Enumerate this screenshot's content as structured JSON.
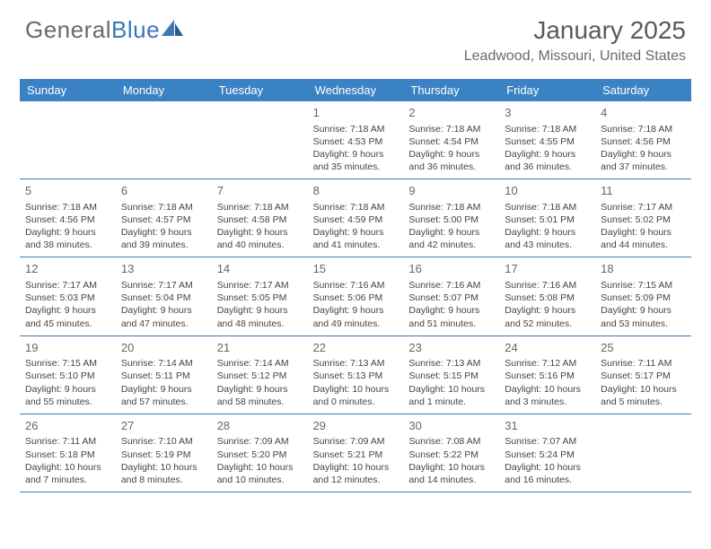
{
  "logo": {
    "text_gray": "General",
    "text_blue": "Blue"
  },
  "header": {
    "month_title": "January 2025",
    "location": "Leadwood, Missouri, United States"
  },
  "colors": {
    "header_bg": "#3b82c4",
    "header_text": "#ffffff",
    "divider": "#3b78b5",
    "body_text": "#444444",
    "daynum_text": "#666666",
    "logo_gray": "#6a6a6a",
    "logo_blue": "#3b78b5"
  },
  "day_names": [
    "Sunday",
    "Monday",
    "Tuesday",
    "Wednesday",
    "Thursday",
    "Friday",
    "Saturday"
  ],
  "weeks": [
    [
      null,
      null,
      null,
      {
        "n": "1",
        "sr": "7:18 AM",
        "ss": "4:53 PM",
        "dl": "9 hours and 35 minutes."
      },
      {
        "n": "2",
        "sr": "7:18 AM",
        "ss": "4:54 PM",
        "dl": "9 hours and 36 minutes."
      },
      {
        "n": "3",
        "sr": "7:18 AM",
        "ss": "4:55 PM",
        "dl": "9 hours and 36 minutes."
      },
      {
        "n": "4",
        "sr": "7:18 AM",
        "ss": "4:56 PM",
        "dl": "9 hours and 37 minutes."
      }
    ],
    [
      {
        "n": "5",
        "sr": "7:18 AM",
        "ss": "4:56 PM",
        "dl": "9 hours and 38 minutes."
      },
      {
        "n": "6",
        "sr": "7:18 AM",
        "ss": "4:57 PM",
        "dl": "9 hours and 39 minutes."
      },
      {
        "n": "7",
        "sr": "7:18 AM",
        "ss": "4:58 PM",
        "dl": "9 hours and 40 minutes."
      },
      {
        "n": "8",
        "sr": "7:18 AM",
        "ss": "4:59 PM",
        "dl": "9 hours and 41 minutes."
      },
      {
        "n": "9",
        "sr": "7:18 AM",
        "ss": "5:00 PM",
        "dl": "9 hours and 42 minutes."
      },
      {
        "n": "10",
        "sr": "7:18 AM",
        "ss": "5:01 PM",
        "dl": "9 hours and 43 minutes."
      },
      {
        "n": "11",
        "sr": "7:17 AM",
        "ss": "5:02 PM",
        "dl": "9 hours and 44 minutes."
      }
    ],
    [
      {
        "n": "12",
        "sr": "7:17 AM",
        "ss": "5:03 PM",
        "dl": "9 hours and 45 minutes."
      },
      {
        "n": "13",
        "sr": "7:17 AM",
        "ss": "5:04 PM",
        "dl": "9 hours and 47 minutes."
      },
      {
        "n": "14",
        "sr": "7:17 AM",
        "ss": "5:05 PM",
        "dl": "9 hours and 48 minutes."
      },
      {
        "n": "15",
        "sr": "7:16 AM",
        "ss": "5:06 PM",
        "dl": "9 hours and 49 minutes."
      },
      {
        "n": "16",
        "sr": "7:16 AM",
        "ss": "5:07 PM",
        "dl": "9 hours and 51 minutes."
      },
      {
        "n": "17",
        "sr": "7:16 AM",
        "ss": "5:08 PM",
        "dl": "9 hours and 52 minutes."
      },
      {
        "n": "18",
        "sr": "7:15 AM",
        "ss": "5:09 PM",
        "dl": "9 hours and 53 minutes."
      }
    ],
    [
      {
        "n": "19",
        "sr": "7:15 AM",
        "ss": "5:10 PM",
        "dl": "9 hours and 55 minutes."
      },
      {
        "n": "20",
        "sr": "7:14 AM",
        "ss": "5:11 PM",
        "dl": "9 hours and 57 minutes."
      },
      {
        "n": "21",
        "sr": "7:14 AM",
        "ss": "5:12 PM",
        "dl": "9 hours and 58 minutes."
      },
      {
        "n": "22",
        "sr": "7:13 AM",
        "ss": "5:13 PM",
        "dl": "10 hours and 0 minutes."
      },
      {
        "n": "23",
        "sr": "7:13 AM",
        "ss": "5:15 PM",
        "dl": "10 hours and 1 minute."
      },
      {
        "n": "24",
        "sr": "7:12 AM",
        "ss": "5:16 PM",
        "dl": "10 hours and 3 minutes."
      },
      {
        "n": "25",
        "sr": "7:11 AM",
        "ss": "5:17 PM",
        "dl": "10 hours and 5 minutes."
      }
    ],
    [
      {
        "n": "26",
        "sr": "7:11 AM",
        "ss": "5:18 PM",
        "dl": "10 hours and 7 minutes."
      },
      {
        "n": "27",
        "sr": "7:10 AM",
        "ss": "5:19 PM",
        "dl": "10 hours and 8 minutes."
      },
      {
        "n": "28",
        "sr": "7:09 AM",
        "ss": "5:20 PM",
        "dl": "10 hours and 10 minutes."
      },
      {
        "n": "29",
        "sr": "7:09 AM",
        "ss": "5:21 PM",
        "dl": "10 hours and 12 minutes."
      },
      {
        "n": "30",
        "sr": "7:08 AM",
        "ss": "5:22 PM",
        "dl": "10 hours and 14 minutes."
      },
      {
        "n": "31",
        "sr": "7:07 AM",
        "ss": "5:24 PM",
        "dl": "10 hours and 16 minutes."
      },
      null
    ]
  ],
  "labels": {
    "sunrise": "Sunrise: ",
    "sunset": "Sunset: ",
    "daylight": "Daylight: "
  }
}
